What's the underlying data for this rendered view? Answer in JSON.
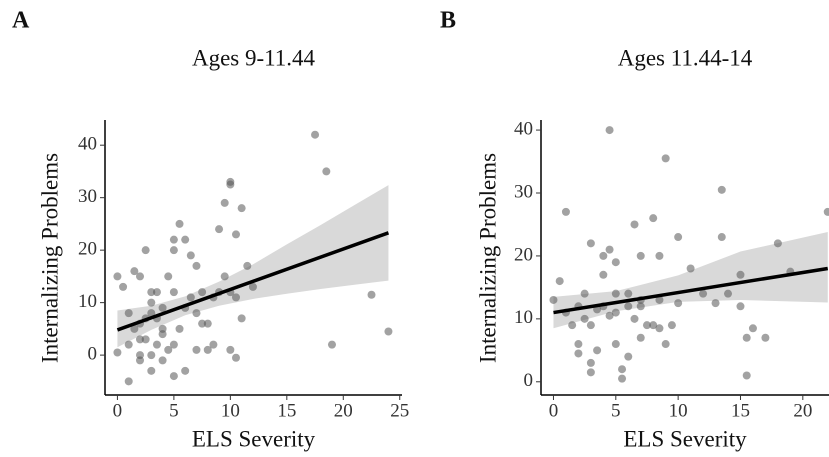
{
  "chart_data": [
    {
      "type": "scatter",
      "panel": "A",
      "title": "Ages 9-11.44",
      "x_label": "ELS Severity",
      "y_label": "Internalizing Problems",
      "color": "#555555",
      "fit_color": "#000000",
      "band_color": "#d9d9d9",
      "x": [
        0,
        0,
        0.5,
        1,
        1,
        1,
        1.5,
        1.5,
        2,
        2,
        2,
        2,
        2,
        2.5,
        2.5,
        2.5,
        3,
        3,
        3,
        3,
        3,
        3.5,
        3.5,
        3.5,
        4,
        4,
        4,
        4,
        4.5,
        4.5,
        5,
        5,
        5,
        5,
        5,
        5.5,
        5.5,
        6,
        6,
        6,
        6.5,
        6.5,
        7,
        7,
        7,
        7.5,
        7.5,
        8,
        8,
        8.5,
        8.5,
        9,
        9,
        9.5,
        9.5,
        10,
        10,
        10,
        10,
        10.5,
        10.5,
        10.5,
        11,
        11,
        11.5,
        12,
        17.5,
        18.5,
        19,
        22.5,
        24
      ],
      "values": [
        15,
        0.5,
        13,
        -5,
        8,
        2,
        16,
        5,
        6,
        -1,
        0,
        3,
        15,
        20,
        7,
        3,
        8,
        10,
        12,
        0,
        -3,
        12,
        2,
        7,
        9,
        5,
        -1,
        4,
        15,
        1,
        22,
        20,
        12,
        -4,
        2,
        25,
        5,
        22,
        9,
        -3,
        19,
        11,
        17,
        8,
        1,
        12,
        6,
        6,
        1,
        11,
        2,
        24,
        12,
        29,
        15,
        33,
        32.5,
        12,
        1,
        23,
        -0.5,
        11,
        28,
        7,
        17,
        13,
        42,
        35,
        2,
        11.5,
        4.5
      ],
      "fit": {
        "x": [
          0,
          24
        ],
        "values": [
          4.8,
          23.3
        ]
      },
      "band": {
        "x": [
          0,
          3,
          6,
          9,
          12,
          15,
          18,
          21,
          24
        ],
        "lower": [
          1.5,
          4.8,
          7.6,
          9.4,
          10.7,
          11.7,
          12.6,
          13.4,
          14.2
        ],
        "upper": [
          8.5,
          9.4,
          11.2,
          14.0,
          17.3,
          21.1,
          24.8,
          28.6,
          32.4
        ]
      },
      "xlim": [
        -1.1,
        25.2
      ],
      "ylim": [
        -7.6,
        44.8
      ],
      "xticks": [
        0,
        5,
        10,
        15,
        20,
        25
      ],
      "yticks": [
        0,
        10,
        20,
        30,
        40
      ]
    },
    {
      "type": "scatter",
      "panel": "B",
      "title": "Ages 11.44-14",
      "x_label": "ELS Severity",
      "y_label": "Internalizing Problems",
      "color": "#555555",
      "fit_color": "#000000",
      "band_color": "#d9d9d9",
      "x": [
        0,
        0.5,
        1,
        1,
        1.5,
        2,
        2,
        2,
        2.5,
        2.5,
        3,
        3,
        3,
        3,
        3.5,
        3.5,
        4,
        4,
        4,
        4.5,
        4.5,
        4.5,
        5,
        5,
        5,
        5,
        5.5,
        5.5,
        6,
        6,
        6,
        6.5,
        6.5,
        7,
        7,
        7,
        7,
        7.5,
        8,
        8,
        8.5,
        8.5,
        8.5,
        9,
        9,
        9.5,
        10,
        10,
        11,
        12,
        13,
        13.5,
        13.5,
        14,
        15,
        15,
        15.5,
        15.5,
        16,
        17,
        18,
        19,
        22
      ],
      "values": [
        13,
        16,
        27,
        11,
        9,
        6,
        4.5,
        12,
        14,
        10,
        1.5,
        3,
        22,
        9,
        5,
        11.5,
        12,
        20,
        17,
        40,
        21,
        10.5,
        11,
        6,
        19,
        14,
        2,
        0.5,
        14,
        12,
        4,
        25,
        10,
        20,
        13,
        12,
        7,
        9,
        26,
        9,
        20,
        13,
        8.5,
        35.5,
        6,
        9,
        23,
        12.5,
        18,
        14,
        12.5,
        30.5,
        23,
        14,
        17,
        12,
        1,
        7,
        8.5,
        7,
        22,
        17.5,
        27
      ],
      "fit": {
        "x": [
          0,
          22
        ],
        "values": [
          11,
          18
        ]
      },
      "band": {
        "x": [
          0,
          5,
          10,
          15,
          22
        ],
        "lower": [
          8.5,
          11.2,
          12.7,
          13.0,
          12.6
        ],
        "upper": [
          13.5,
          14.4,
          16.9,
          20.7,
          23.8
        ]
      },
      "xlim": [
        -1,
        22.1
      ],
      "ylim": [
        -2.1,
        41.6
      ],
      "xticks": [
        0,
        5,
        10,
        15,
        20
      ],
      "yticks": [
        0,
        10,
        20,
        30,
        40
      ]
    }
  ]
}
